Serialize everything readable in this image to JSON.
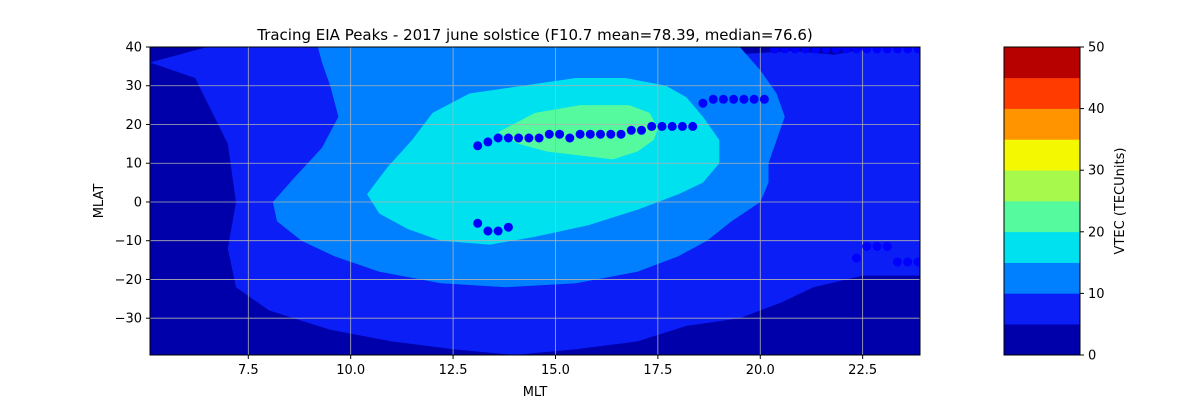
{
  "chart_data": {
    "type": "contour",
    "title": "Tracing EIA Peaks - 2017 june solstice (F10.7 mean=78.39, median=76.6)",
    "xlabel": "MLT",
    "ylabel": "MLAT",
    "xlim": [
      5.1,
      23.9
    ],
    "ylim": [
      -39.5,
      40
    ],
    "x_ticks": [
      7.5,
      10.0,
      12.5,
      15.0,
      17.5,
      20.0,
      22.5
    ],
    "x_tick_labels": [
      "7.5",
      "10.0",
      "12.5",
      "15.0",
      "17.5",
      "20.0",
      "22.5"
    ],
    "y_ticks": [
      40,
      30,
      20,
      10,
      0,
      -10,
      -20,
      -30
    ],
    "y_tick_labels": [
      "40",
      "30",
      "20",
      "10",
      "0",
      "−10",
      "−20",
      "−30"
    ],
    "grid": true,
    "colorbar": {
      "label": "VTEC (TECUnits)",
      "min": 0,
      "max": 50,
      "ticks": [
        0,
        10,
        20,
        30,
        40,
        50
      ],
      "levels": [
        0,
        5,
        10,
        15,
        20,
        25,
        30,
        35,
        40,
        45,
        50
      ],
      "colors": [
        "#0000aa",
        "#0a1ef5",
        "#0080ff",
        "#00e1f0",
        "#55f99e",
        "#a7fa4b",
        "#f4f800",
        "#ff9400",
        "#ff3b00",
        "#b70000"
      ]
    },
    "contour_regions": [
      {
        "level": 5,
        "mlt": [
          5.1,
          6.2,
          7.0,
          7.2,
          7.0,
          7.2,
          8.0,
          9.5,
          11.0,
          12.5,
          14.0,
          15.5,
          17.0,
          18.2,
          19.5,
          20.5,
          21.3,
          22.5,
          23.9,
          23.9,
          22.8,
          21.8,
          20.8,
          19.3,
          17.0,
          14.5,
          12.0,
          10.3,
          9.0,
          6.5
        ],
        "mlat": [
          36,
          32,
          15,
          0,
          -12,
          -22,
          -28,
          -33,
          -36,
          -38,
          -39.5,
          -38,
          -36,
          -32,
          -30,
          -26,
          -22,
          -19,
          -19,
          40,
          40,
          38,
          39,
          38,
          40,
          40,
          40,
          40,
          40,
          40
        ]
      },
      {
        "level": 10,
        "mlat": [
          40,
          36,
          30,
          22,
          14,
          6,
          0,
          -5,
          -10,
          -14,
          -18,
          -21,
          -22,
          -21,
          -18,
          -14,
          -10,
          -5,
          0,
          5,
          10,
          16,
          22,
          28,
          34,
          40
        ],
        "mlt": [
          9.2,
          9.3,
          9.5,
          9.7,
          9.3,
          8.6,
          8.1,
          8.2,
          8.8,
          9.6,
          10.7,
          12.2,
          13.8,
          15.5,
          17.0,
          18.0,
          18.7,
          19.3,
          20.0,
          20.2,
          20.2,
          20.4,
          20.6,
          20.4,
          20.0,
          19.5
        ]
      },
      {
        "level": 15,
        "mlt": [
          10.4,
          10.9,
          11.5,
          12.0,
          12.9,
          14.2,
          15.5,
          16.7,
          17.7,
          18.2,
          18.6,
          19.0,
          19.0,
          18.6,
          18.0,
          17.0,
          15.8,
          14.5,
          13.4,
          12.2,
          11.4,
          10.7
        ],
        "mlat": [
          2,
          9,
          16,
          23,
          28,
          30,
          32,
          32,
          30,
          27,
          22,
          16,
          10,
          5,
          2,
          -2,
          -6,
          -9,
          -11,
          -10,
          -7,
          -3
        ]
      },
      {
        "level": 20,
        "mlt": [
          13.6,
          14.5,
          15.6,
          16.8,
          17.3,
          17.5,
          17.4,
          17.0,
          16.4,
          15.6,
          14.8,
          14.1
        ],
        "mlat": [
          18,
          23,
          25,
          25,
          23,
          19,
          16,
          13,
          11,
          12,
          13,
          15
        ]
      }
    ],
    "series": [
      {
        "name": "EIA peaks",
        "marker_color": "#0000ff",
        "mlt": [
          13.1,
          13.35,
          13.6,
          13.85,
          14.1,
          14.35,
          14.6,
          14.85,
          15.1,
          15.35,
          15.6,
          15.85,
          16.1,
          16.35,
          16.6,
          16.85,
          17.1,
          17.35,
          17.6,
          17.85,
          18.1,
          18.35,
          18.6,
          18.85,
          19.1,
          19.35,
          19.6,
          19.85,
          20.1,
          13.1,
          13.35,
          13.6,
          13.85,
          20.35,
          20.6,
          20.85,
          21.1,
          21.35,
          21.6,
          21.85,
          22.1,
          22.35,
          22.6,
          22.85,
          23.1,
          23.35,
          23.6,
          23.85,
          22.35,
          22.6,
          22.85,
          23.1,
          23.35,
          23.6,
          23.85
        ],
        "mlat": [
          14.5,
          15.5,
          16.5,
          16.5,
          16.5,
          16.5,
          16.5,
          17.5,
          17.5,
          16.5,
          17.5,
          17.5,
          17.5,
          17.5,
          17.5,
          18.5,
          18.5,
          19.5,
          19.5,
          19.5,
          19.5,
          19.5,
          25.5,
          26.5,
          26.5,
          26.5,
          26.5,
          26.5,
          26.5,
          -5.5,
          -7.5,
          -7.5,
          -6.5,
          39.5,
          39.5,
          39.5,
          39.5,
          39.5,
          39.5,
          39.5,
          39.5,
          39.5,
          39.5,
          39.5,
          39.5,
          39.5,
          39.5,
          39.5,
          -14.5,
          -11.5,
          -11.5,
          -11.5,
          -15.5,
          -15.5,
          -15.5
        ]
      }
    ]
  }
}
